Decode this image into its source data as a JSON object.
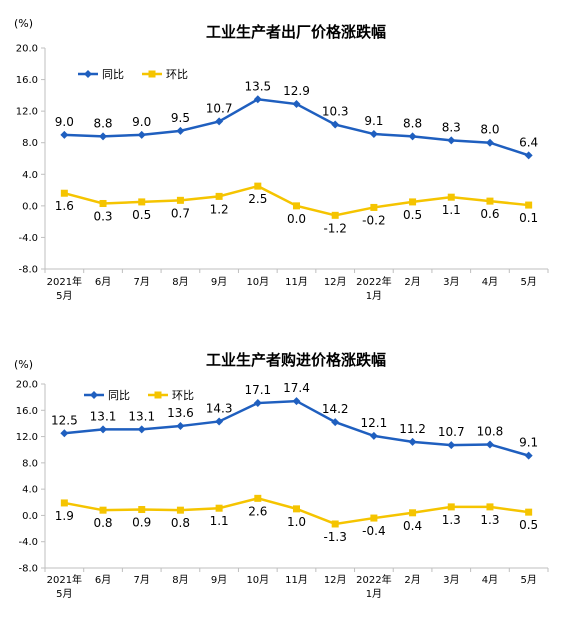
{
  "colors": {
    "yoy": "#1f5fbf",
    "mom": "#f5c400",
    "axis": "#bfbfbf"
  },
  "chart_data": [
    {
      "type": "line",
      "title": "工业生产者出厂价格涨跌幅",
      "unit_label": "(%)",
      "categories": [
        [
          "2021年",
          "5月"
        ],
        [
          "6月"
        ],
        [
          "7月"
        ],
        [
          "8月"
        ],
        [
          "9月"
        ],
        [
          "10月"
        ],
        [
          "11月"
        ],
        [
          "12月"
        ],
        [
          "2022年",
          "1月"
        ],
        [
          "2月"
        ],
        [
          "3月"
        ],
        [
          "4月"
        ],
        [
          "5月"
        ]
      ],
      "ylim": [
        -8.0,
        20.0
      ],
      "yticks": [
        "20.0",
        "16.0",
        "12.0",
        "8.0",
        "4.0",
        "0.0",
        "-4.0",
        "-8.0"
      ],
      "ytick_values": [
        20,
        16,
        12,
        8,
        4,
        0,
        -4,
        -8
      ],
      "legend_position": "top-left",
      "grid": false,
      "series": [
        {
          "name": "同比",
          "marker": "diamond",
          "color_key": "yoy",
          "label_pos": "above",
          "values": [
            9.0,
            8.8,
            9.0,
            9.5,
            10.7,
            13.5,
            12.9,
            10.3,
            9.1,
            8.8,
            8.3,
            8.0,
            6.4
          ],
          "labels": [
            "9.0",
            "8.8",
            "9.0",
            "9.5",
            "10.7",
            "13.5",
            "12.9",
            "10.3",
            "9.1",
            "8.8",
            "8.3",
            "8.0",
            "6.4"
          ]
        },
        {
          "name": "环比",
          "marker": "square",
          "color_key": "mom",
          "label_pos": "below",
          "values": [
            1.6,
            0.3,
            0.5,
            0.7,
            1.2,
            2.5,
            0.0,
            -1.2,
            -0.2,
            0.5,
            1.1,
            0.6,
            0.1
          ],
          "labels": [
            "1.6",
            "0.3",
            "0.5",
            "0.7",
            "1.2",
            "2.5",
            "0.0",
            "-1.2",
            "-0.2",
            "0.5",
            "1.1",
            "0.6",
            "0.1"
          ]
        }
      ]
    },
    {
      "type": "line",
      "title": "工业生产者购进价格涨跌幅",
      "unit_label": "(%)",
      "categories": [
        [
          "2021年",
          "5月"
        ],
        [
          "6月"
        ],
        [
          "7月"
        ],
        [
          "8月"
        ],
        [
          "9月"
        ],
        [
          "10月"
        ],
        [
          "11月"
        ],
        [
          "12月"
        ],
        [
          "2022年",
          "1月"
        ],
        [
          "2月"
        ],
        [
          "3月"
        ],
        [
          "4月"
        ],
        [
          "5月"
        ]
      ],
      "ylim": [
        -8.0,
        20.0
      ],
      "yticks": [
        "20.0",
        "16.0",
        "12.0",
        "8.0",
        "4.0",
        "0.0",
        "-4.0",
        "-8.0"
      ],
      "ytick_values": [
        20,
        16,
        12,
        8,
        4,
        0,
        -4,
        -8
      ],
      "legend_position": "top-left",
      "grid": false,
      "series": [
        {
          "name": "同比",
          "marker": "diamond",
          "color_key": "yoy",
          "label_pos": "above",
          "values": [
            12.5,
            13.1,
            13.1,
            13.6,
            14.3,
            17.1,
            17.4,
            14.2,
            12.1,
            11.2,
            10.7,
            10.8,
            9.1
          ],
          "labels": [
            "12.5",
            "13.1",
            "13.1",
            "13.6",
            "14.3",
            "17.1",
            "17.4",
            "14.2",
            "12.1",
            "11.2",
            "10.7",
            "10.8",
            "9.1"
          ]
        },
        {
          "name": "环比",
          "marker": "square",
          "color_key": "mom",
          "label_pos": "below",
          "values": [
            1.9,
            0.8,
            0.9,
            0.8,
            1.1,
            2.6,
            1.0,
            -1.3,
            -0.4,
            0.4,
            1.3,
            1.3,
            0.5
          ],
          "labels": [
            "1.9",
            "0.8",
            "0.9",
            "0.8",
            "1.1",
            "2.6",
            "1.0",
            "-1.3",
            "-0.4",
            "0.4",
            "1.3",
            "1.3",
            "0.5"
          ]
        }
      ]
    }
  ]
}
